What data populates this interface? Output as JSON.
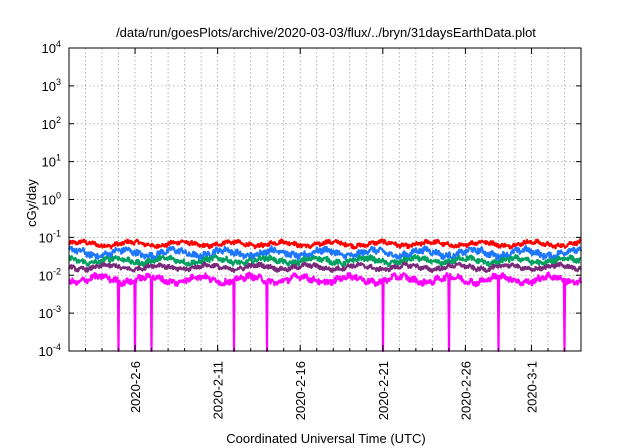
{
  "title": "/data/run/goesPlots/archive/2020-03-03/flux/../bryn/31daysEarthData.plot",
  "colors": {
    "background": "#ffffff",
    "frame": "#000000",
    "grid": "#a0a0a0"
  },
  "chart_data": {
    "type": "line",
    "title": "/data/run/goesPlots/archive/2020-03-03/flux/../bryn/31daysEarthData.plot",
    "xlabel": "Coordinated Universal Time (UTC)",
    "ylabel": "cGy/day",
    "yscale": "log",
    "ylim": [
      0.0001,
      10000
    ],
    "xlim": [
      "2020-02-02",
      "2020-03-04"
    ],
    "grid": true,
    "y_ticks": [
      {
        "base": "10",
        "exp": "-4",
        "value": 0.0001
      },
      {
        "base": "10",
        "exp": "-3",
        "value": 0.001
      },
      {
        "base": "10",
        "exp": "-2",
        "value": 0.01
      },
      {
        "base": "10",
        "exp": "-1",
        "value": 0.1
      },
      {
        "base": "10",
        "exp": "0",
        "value": 1
      },
      {
        "base": "10",
        "exp": "1",
        "value": 10
      },
      {
        "base": "10",
        "exp": "2",
        "value": 100
      },
      {
        "base": "10",
        "exp": "3",
        "value": 1000
      },
      {
        "base": "10",
        "exp": "4",
        "value": 10000
      }
    ],
    "x_ticks": [
      {
        "label": "2020-2-6",
        "date": "2020-02-06"
      },
      {
        "label": "2020-2-11",
        "date": "2020-02-11"
      },
      {
        "label": "2020-2-16",
        "date": "2020-02-16"
      },
      {
        "label": "2020-2-21",
        "date": "2020-02-21"
      },
      {
        "label": "2020-2-26",
        "date": "2020-02-26"
      },
      {
        "label": "2020-3-1",
        "date": "2020-03-01"
      }
    ],
    "series": [
      {
        "color": "#ff0000",
        "level_min": 0.05,
        "level_max": 0.09
      },
      {
        "color": "#1e78ff",
        "level_min": 0.025,
        "level_max": 0.06
      },
      {
        "color": "#00a060",
        "level_min": 0.017,
        "level_max": 0.035
      },
      {
        "color": "#7a2a7a",
        "level_min": 0.012,
        "level_max": 0.022
      },
      {
        "color": "#ff00ff",
        "level_min": 0.005,
        "level_max": 0.012
      }
    ],
    "dropouts": {
      "series": "#ff00ff",
      "value": 0.0001,
      "dates": [
        "2020-02-05",
        "2020-02-06",
        "2020-02-06",
        "2020-02-07",
        "2020-02-07",
        "2020-02-12",
        "2020-02-14",
        "2020-02-21",
        "2020-02-25",
        "2020-02-28",
        "2020-03-03"
      ]
    }
  }
}
